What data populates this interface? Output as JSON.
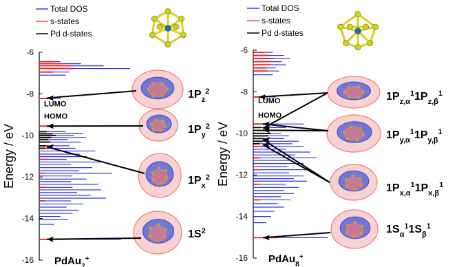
{
  "figure": {
    "y_axis_label": "Energy / eV"
  },
  "legend": {
    "items": [
      {
        "label": "Total DOS",
        "color": "#3a3af0"
      },
      {
        "label": "s-states",
        "color": "#e8503a"
      },
      {
        "label": "Pd d-states",
        "color": "#000000"
      }
    ]
  },
  "colors": {
    "total_dos": "#2f2fe6",
    "s_states": "#e0202a",
    "pd_d_states": "#000000",
    "orbital_red": "#ef7a78",
    "orbital_blue": "#3f56d9",
    "cluster_gold": "#d5cf1d",
    "cluster_center": "#1b7391"
  },
  "chart_data": [
    {
      "type": "area",
      "title": "",
      "ylabel": "Energy / eV",
      "cluster_label": "PdAu",
      "cluster_subscript": "7",
      "cluster_charge": "+",
      "ylim": [
        -16,
        -6
      ],
      "yticks": [
        -16,
        -14,
        -12,
        -10,
        -8,
        -6
      ],
      "ytick_labels": [
        "-16",
        "-14",
        "-12",
        "-10",
        "-8",
        "-6"
      ],
      "markers": [
        {
          "text": "LUMO",
          "y": -8.6
        },
        {
          "text": "HOMO",
          "y": -9.2
        }
      ],
      "orbitals": [
        {
          "label_main": "1P",
          "sub": "z",
          "sup": "2",
          "targets": [
            -8.2
          ]
        },
        {
          "label_main": "1P",
          "sub": "y",
          "sup": "2",
          "targets": [
            -9.55
          ]
        },
        {
          "label_main": "1P",
          "sub": "x",
          "sup": "2",
          "targets": [
            -10.55
          ]
        },
        {
          "label_main": "1S",
          "sub": "",
          "sup": "2",
          "targets": [
            -15.0
          ]
        }
      ],
      "series": [
        {
          "name": "Total DOS",
          "points": [
            [
              -6.45,
              0.28
            ],
            [
              -6.55,
              0.55
            ],
            [
              -6.65,
              0.85
            ],
            [
              -6.78,
              1.2
            ],
            [
              -6.95,
              0.4
            ],
            [
              -7.1,
              0.35
            ],
            [
              -8.22,
              0.28
            ],
            [
              -9.55,
              0.72
            ],
            [
              -9.82,
              0.35
            ],
            [
              -9.92,
              0.58
            ],
            [
              -10.0,
              0.46
            ],
            [
              -10.1,
              0.62
            ],
            [
              -10.2,
              0.38
            ],
            [
              -10.32,
              0.55
            ],
            [
              -10.5,
              0.4
            ],
            [
              -10.62,
              0.48
            ],
            [
              -10.75,
              0.74
            ],
            [
              -10.9,
              0.54
            ],
            [
              -11.02,
              0.63
            ],
            [
              -11.15,
              0.36
            ],
            [
              -11.28,
              0.86
            ],
            [
              -11.4,
              0.42
            ],
            [
              -11.55,
              0.7
            ],
            [
              -11.7,
              0.52
            ],
            [
              -11.82,
              0.96
            ],
            [
              -11.95,
              0.44
            ],
            [
              -12.1,
              0.62
            ],
            [
              -12.22,
              0.42
            ],
            [
              -12.35,
              0.78
            ],
            [
              -12.5,
              0.44
            ],
            [
              -12.62,
              0.82
            ],
            [
              -12.75,
              0.5
            ],
            [
              -12.88,
              0.68
            ],
            [
              -13.02,
              0.88
            ],
            [
              -13.15,
              0.42
            ],
            [
              -13.3,
              0.58
            ],
            [
              -13.45,
              0.36
            ],
            [
              -13.6,
              0.52
            ],
            [
              -13.75,
              0.44
            ],
            [
              -13.9,
              0.28
            ],
            [
              -14.05,
              0.38
            ],
            [
              -14.28,
              0.2
            ],
            [
              -15.0,
              1.08
            ]
          ]
        },
        {
          "name": "s-states",
          "points": [
            [
              -6.45,
              0.2
            ],
            [
              -6.55,
              0.3
            ],
            [
              -6.65,
              0.42
            ],
            [
              -6.78,
              0.45
            ],
            [
              -6.95,
              0.18
            ],
            [
              -8.22,
              0.18
            ],
            [
              -9.55,
              0.2
            ],
            [
              -9.92,
              0.16
            ],
            [
              -10.1,
              0.14
            ],
            [
              -10.32,
              0.16
            ],
            [
              -10.5,
              0.12
            ],
            [
              -10.62,
              0.14
            ],
            [
              -11.15,
              0.1
            ],
            [
              -11.82,
              0.08
            ],
            [
              -12.5,
              0.08
            ],
            [
              -13.15,
              0.08
            ],
            [
              -15.0,
              0.35
            ]
          ]
        },
        {
          "name": "Pd d-states",
          "points": [
            [
              -9.82,
              0.1
            ],
            [
              -9.92,
              0.18
            ],
            [
              -10.0,
              0.22
            ],
            [
              -10.1,
              0.16
            ],
            [
              -10.2,
              0.12
            ],
            [
              -10.32,
              0.14
            ],
            [
              -10.5,
              0.09
            ],
            [
              -10.62,
              0.08
            ]
          ]
        }
      ]
    },
    {
      "type": "area",
      "title": "",
      "ylabel": "Energy / eV",
      "cluster_label": "PdAu",
      "cluster_subscript": "8",
      "cluster_charge": "+",
      "ylim": [
        -16,
        -6
      ],
      "yticks": [
        -16,
        -14,
        -12,
        -10,
        -8,
        -6
      ],
      "ytick_labels": [
        "-16",
        "-14",
        "-12",
        "-10",
        "-8",
        "-6"
      ],
      "markers": [
        {
          "text": "LUMO",
          "y": -8.55
        },
        {
          "text": "HOMO",
          "y": -9.25
        }
      ],
      "orbitals": [
        {
          "label_main": "1P",
          "sub": "z,α",
          "sup": "1",
          "label_main2": "1P",
          "sub2": "z,β",
          "sup2": "1",
          "targets": [
            -8.25,
            -9.75
          ]
        },
        {
          "label_main": "1P",
          "sub": "y,α",
          "sup": "1",
          "label_main2": "1P",
          "sub2": "y,β",
          "sup2": "1",
          "targets": [
            -9.55,
            -9.85
          ]
        },
        {
          "label_main": "1P",
          "sub": "x,α",
          "sup": "1",
          "label_main2": "1P",
          "sub2": "x,β",
          "sup2": "1",
          "targets": [
            -10.3,
            -10.55
          ]
        },
        {
          "label_main": "1S",
          "sub": "α",
          "sup": "1",
          "label_main2": "1S",
          "sub2": "β",
          "sup2": "1",
          "targets": [
            -15.02
          ]
        }
      ],
      "series": [
        {
          "name": "Total DOS",
          "points": [
            [
              -6.1,
              0.24
            ],
            [
              -6.25,
              0.38
            ],
            [
              -6.4,
              0.45
            ],
            [
              -6.55,
              0.35
            ],
            [
              -6.7,
              0.4
            ],
            [
              -6.85,
              0.28
            ],
            [
              -7.0,
              0.32
            ],
            [
              -7.18,
              0.24
            ],
            [
              -8.25,
              0.28
            ],
            [
              -9.55,
              0.62
            ],
            [
              -9.72,
              0.4
            ],
            [
              -9.86,
              0.52
            ],
            [
              -10.0,
              0.35
            ],
            [
              -10.12,
              0.44
            ],
            [
              -10.25,
              0.38
            ],
            [
              -10.38,
              0.56
            ],
            [
              -10.5,
              0.48
            ],
            [
              -10.63,
              0.62
            ],
            [
              -10.76,
              0.4
            ],
            [
              -10.9,
              0.7
            ],
            [
              -11.04,
              0.52
            ],
            [
              -11.18,
              0.78
            ],
            [
              -11.3,
              0.46
            ],
            [
              -11.45,
              0.62
            ],
            [
              -11.6,
              0.42
            ],
            [
              -11.75,
              0.7
            ],
            [
              -11.9,
              0.44
            ],
            [
              -12.05,
              0.62
            ],
            [
              -12.18,
              0.5
            ],
            [
              -12.3,
              0.66
            ],
            [
              -12.45,
              0.4
            ],
            [
              -12.6,
              0.56
            ],
            [
              -12.75,
              0.38
            ],
            [
              -12.9,
              0.5
            ],
            [
              -13.05,
              0.34
            ],
            [
              -13.2,
              0.46
            ],
            [
              -13.38,
              0.3
            ],
            [
              -13.55,
              0.38
            ],
            [
              -13.75,
              0.26
            ],
            [
              -14.0,
              0.22
            ],
            [
              -14.3,
              0.16
            ],
            [
              -15.02,
              0.92
            ]
          ]
        },
        {
          "name": "s-states",
          "points": [
            [
              -6.1,
              0.14
            ],
            [
              -6.25,
              0.2
            ],
            [
              -6.4,
              0.26
            ],
            [
              -6.55,
              0.2
            ],
            [
              -6.7,
              0.22
            ],
            [
              -6.85,
              0.16
            ],
            [
              -7.0,
              0.18
            ],
            [
              -8.25,
              0.16
            ],
            [
              -9.55,
              0.18
            ],
            [
              -9.86,
              0.14
            ],
            [
              -10.12,
              0.12
            ],
            [
              -10.38,
              0.12
            ],
            [
              -10.63,
              0.12
            ],
            [
              -11.18,
              0.08
            ],
            [
              -11.75,
              0.08
            ],
            [
              -12.45,
              0.08
            ],
            [
              -13.2,
              0.08
            ],
            [
              -15.02,
              0.3
            ]
          ]
        },
        {
          "name": "Pd d-states",
          "points": [
            [
              -9.72,
              0.1
            ],
            [
              -9.86,
              0.16
            ],
            [
              -10.0,
              0.22
            ],
            [
              -10.12,
              0.18
            ],
            [
              -10.25,
              0.14
            ],
            [
              -10.38,
              0.12
            ],
            [
              -10.5,
              0.08
            ]
          ]
        }
      ]
    }
  ]
}
